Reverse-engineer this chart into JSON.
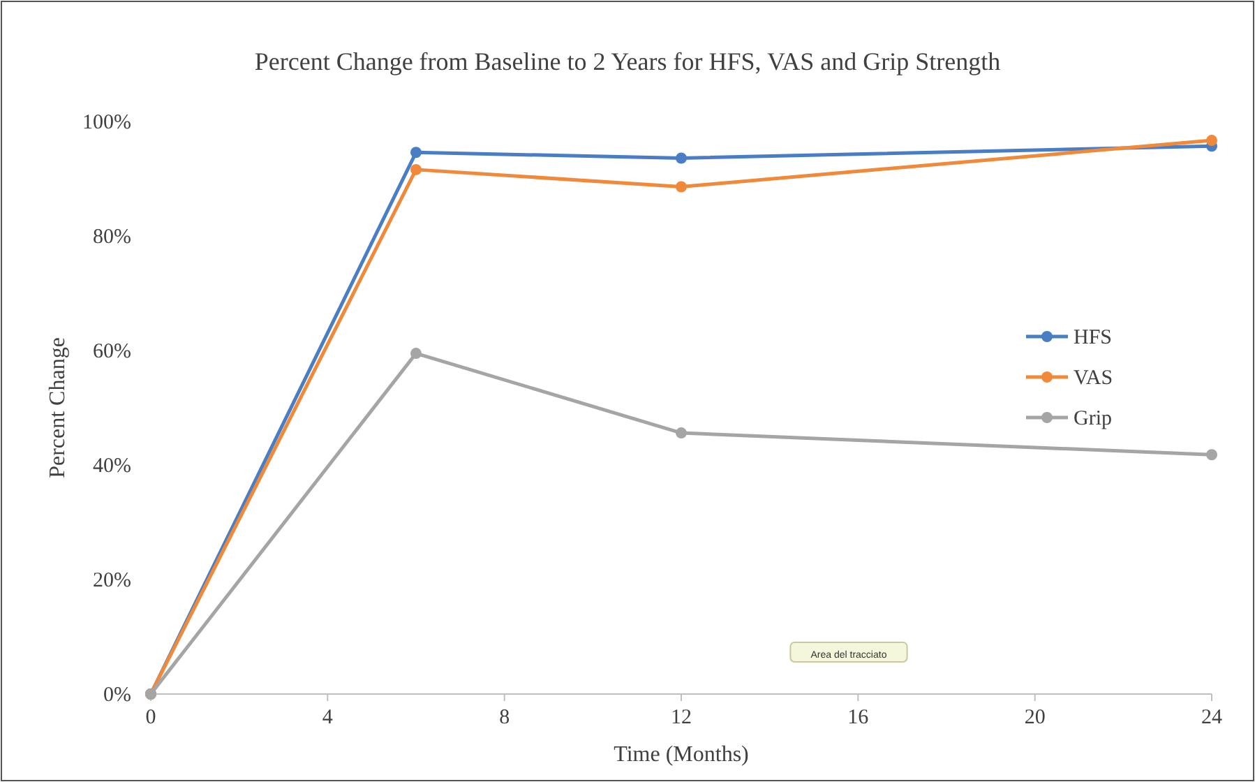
{
  "chart_data": {
    "type": "line",
    "title": "Percent Change from Baseline to 2 Years for HFS, VAS and Grip Strength",
    "xlabel": "Time (Months)",
    "ylabel": "Percent Change",
    "x": [
      0,
      6,
      12,
      24
    ],
    "series": [
      {
        "name": "HFS",
        "color": "#4a7ec4",
        "values": [
          0,
          94.6,
          93.6,
          95.7
        ]
      },
      {
        "name": "VAS",
        "color": "#f08a3a",
        "values": [
          0,
          91.6,
          88.6,
          96.7
        ]
      },
      {
        "name": "Grip",
        "color": "#a5a5a5",
        "values": [
          0,
          59.5,
          45.6,
          41.8
        ]
      }
    ],
    "xlim": [
      0,
      24
    ],
    "xticks": [
      0,
      4,
      8,
      12,
      16,
      20,
      24
    ],
    "ylim": [
      0,
      100
    ],
    "yticks": [
      {
        "value": 0,
        "label": "0%"
      },
      {
        "value": 20,
        "label": "20%"
      },
      {
        "value": 40,
        "label": "40%"
      },
      {
        "value": 60,
        "label": "60%"
      },
      {
        "value": 80,
        "label": "80%"
      },
      {
        "value": 100,
        "label": "100%"
      }
    ],
    "grid": false,
    "legend": "right",
    "marker": "circle",
    "line_style": "solid",
    "annotations": [
      "Area del tracciato"
    ]
  }
}
